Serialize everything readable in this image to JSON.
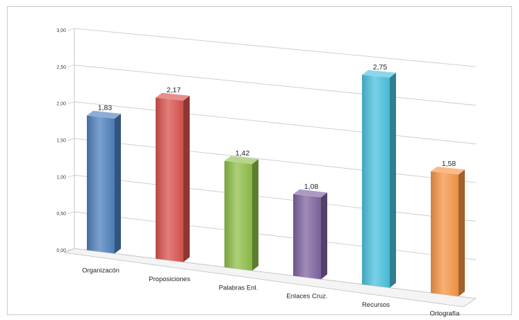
{
  "chart_data": {
    "type": "bar",
    "style": "3d-perspective",
    "categories": [
      "Organizacón",
      "Proposiciones",
      "Palabras Enl.",
      "Enlaces Cruz.",
      "Recursos",
      "Ortografía"
    ],
    "values": [
      1.83,
      2.17,
      1.42,
      1.08,
      2.75,
      1.58
    ],
    "value_labels": [
      "1,83",
      "2,17",
      "1,42",
      "1,08",
      "2,75",
      "1,58"
    ],
    "y_ticks": [
      "0,00",
      "0,50",
      "1,00",
      "1,50",
      "2,00",
      "2,50",
      "3,00"
    ],
    "ylim": [
      0,
      3
    ],
    "grid": true,
    "legend": "none",
    "title": "",
    "xlabel": "",
    "ylabel": "",
    "colors": [
      "#4f81bd",
      "#d9534f",
      "#8fc04a",
      "#8064a2",
      "#4bc2e0",
      "#f79646"
    ]
  }
}
